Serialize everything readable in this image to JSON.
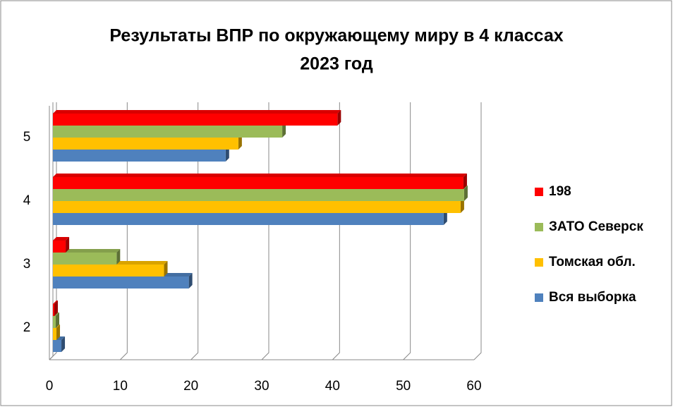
{
  "chart_data": {
    "type": "bar",
    "orientation": "horizontal",
    "title": [
      "Результаты ВПР по окружающему миру в 4 классах",
      "2023 год"
    ],
    "categories": [
      "2",
      "3",
      "4",
      "5"
    ],
    "series": [
      {
        "name": "Вся выборка",
        "color": "#4f81bd",
        "values": [
          1.2,
          19.2,
          55.2,
          24.4
        ]
      },
      {
        "name": "Томская обл.",
        "color": "#ffc000",
        "values": [
          0.5,
          15.7,
          57.6,
          26.2
        ]
      },
      {
        "name": "ЗАТО Северск",
        "color": "#9bbb59",
        "values": [
          0.4,
          9,
          58.1,
          32.4
        ]
      },
      {
        "name": "198",
        "color": "#ff0000",
        "values": [
          0.2,
          1.8,
          58,
          40.2
        ]
      }
    ],
    "xlim": [
      0,
      60
    ],
    "xticks": [
      0,
      10,
      20,
      30,
      40,
      50,
      60
    ],
    "grid": true,
    "legend": "right"
  }
}
